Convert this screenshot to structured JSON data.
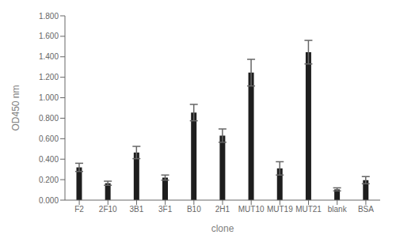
{
  "chart_data": {
    "type": "bar",
    "categories": [
      "F2",
      "2F10",
      "3B1",
      "3F1",
      "B10",
      "2H1",
      "MUT10",
      "MUT19",
      "MUT21",
      "blank",
      "BSA"
    ],
    "values": [
      0.32,
      0.165,
      0.465,
      0.22,
      0.855,
      0.63,
      1.245,
      0.31,
      1.445,
      0.105,
      0.195
    ],
    "errors": [
      0.04,
      0.02,
      0.06,
      0.025,
      0.08,
      0.065,
      0.13,
      0.065,
      0.115,
      0.015,
      0.035
    ],
    "color": "#1e1e1e",
    "xlabel": "clone",
    "ylabel": "OD450 nm",
    "ylim": [
      0.0,
      1.8
    ],
    "yticks": [
      {
        "value": 0.0,
        "label": "0.000"
      },
      {
        "value": 0.2,
        "label": "0.200"
      },
      {
        "value": 0.4,
        "label": "0.400"
      },
      {
        "value": 0.6,
        "label": "0.600"
      },
      {
        "value": 0.8,
        "label": "0.800"
      },
      {
        "value": 1.0,
        "label": "1.000"
      },
      {
        "value": 1.2,
        "label": "1.200"
      },
      {
        "value": 1.4,
        "label": "1.400"
      },
      {
        "value": 1.6,
        "label": "1.600"
      },
      {
        "value": 1.8,
        "label": "1.800"
      }
    ],
    "grid": false
  }
}
